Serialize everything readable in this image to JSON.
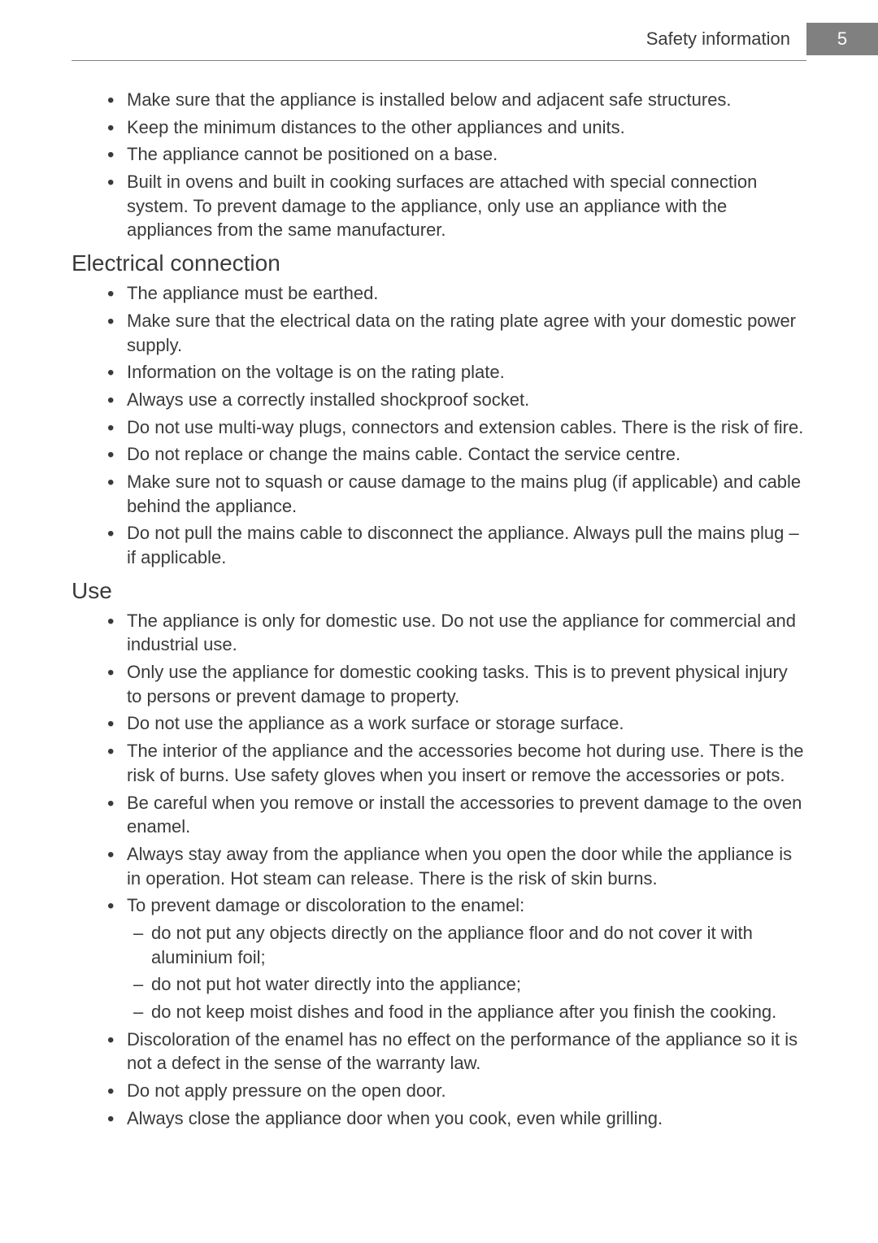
{
  "header": {
    "section_title": "Safety information",
    "page_number": "5"
  },
  "intro_bullets": [
    "Make sure that the appliance is installed below and adjacent safe structures.",
    "Keep the minimum distances to the other appliances and units.",
    "The appliance cannot be positioned on a base.",
    "Built in ovens and built in cooking surfaces are attached with special connection system. To prevent damage to the appliance, only use an appliance with the appliances from the same manufacturer."
  ],
  "electrical": {
    "heading": "Electrical connection",
    "bullets": [
      "The appliance must be earthed.",
      "Make sure that the electrical data on the rating plate agree with your domestic power supply.",
      "Information on the voltage is on the rating plate.",
      "Always use a correctly installed shockproof socket.",
      "Do not use multi-way plugs, connectors and extension cables. There is the risk of fire.",
      "Do not replace or change the mains cable. Contact the service centre.",
      "Make sure not to squash or cause damage to the mains plug (if applicable) and cable behind the appliance.",
      "Do not pull the mains cable to disconnect the appliance. Always pull the mains plug – if applicable."
    ]
  },
  "use": {
    "heading": "Use",
    "bullets": [
      {
        "text": "The appliance is only for domestic use. Do not use the appliance for commercial and industrial use."
      },
      {
        "text": "Only use the appliance for domestic cooking tasks. This is to prevent physical injury to persons or prevent damage to property."
      },
      {
        "text": "Do not use the appliance as a work surface or storage surface."
      },
      {
        "text": "The interior of the appliance and the accessories become hot during use. There is the risk of burns. Use safety gloves when you insert or remove the accessories or pots."
      },
      {
        "text": "Be careful when you remove or install the accessories to prevent damage to the oven enamel."
      },
      {
        "text": "Always stay away from the appliance when you open the door while the appliance is in operation. Hot steam can release. There is the risk of skin burns."
      },
      {
        "text": "To prevent damage or discoloration to the enamel:",
        "sub": [
          "do not put any objects directly on the appliance floor and do not cover it with aluminium foil;",
          "do not put hot water directly into the appliance;",
          "do not keep moist dishes and food in the appliance after you finish the cooking."
        ]
      },
      {
        "text": "Discoloration of the enamel has no effect on the performance of the appliance so it is not a defect in the sense of the warranty law."
      },
      {
        "text": "Do not apply pressure on the open door."
      },
      {
        "text": "Always close the appliance door when you cook, even while grilling."
      }
    ]
  }
}
